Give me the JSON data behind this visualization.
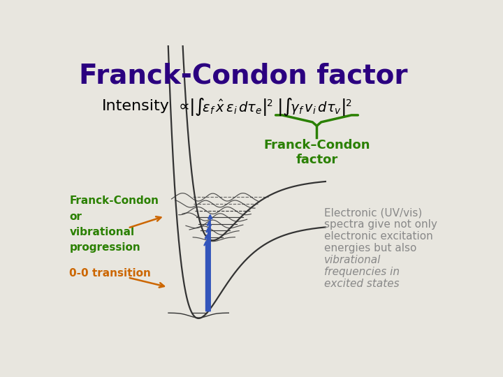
{
  "background_color": "#e8e6df",
  "title": "Franck-Condon factor",
  "title_color": "#2b0080",
  "title_fontsize": 28,
  "fc_label_color": "#2a8000",
  "fc_label": "Franck–Condon\nfactor",
  "left_label": "Franck-Condon\nor\nvibrational\nprogression",
  "left_label_color": "#2a8000",
  "transition_label": "0-0 transition",
  "transition_color": "#cc6600",
  "right_text": "Electronic (UV/vis)\nspectra give not only\nelectronic excitation\nenergies but also\nvibrational\nfrequencies in\nexcited states",
  "right_text_color": "#888888",
  "arrow_color": "#3355bb",
  "curve_color": "#333333"
}
